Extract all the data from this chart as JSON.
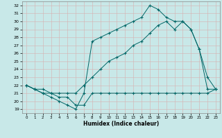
{
  "xlabel": "Humidex (Indice chaleur)",
  "bg_color": "#c8e8e8",
  "line_color": "#006666",
  "xlim": [
    -0.5,
    23.5
  ],
  "ylim": [
    18.5,
    32.5
  ],
  "yticks": [
    19,
    20,
    21,
    22,
    23,
    24,
    25,
    26,
    27,
    28,
    29,
    30,
    31,
    32
  ],
  "xticks": [
    0,
    1,
    2,
    3,
    4,
    5,
    6,
    7,
    8,
    9,
    10,
    11,
    12,
    13,
    14,
    15,
    16,
    17,
    18,
    19,
    20,
    21,
    22,
    23
  ],
  "line_max": {
    "x": [
      0,
      1,
      2,
      3,
      4,
      5,
      6,
      7,
      8,
      9,
      10,
      11,
      12,
      13,
      14,
      15,
      16,
      17,
      18,
      19,
      20,
      21,
      22,
      23
    ],
    "y": [
      22,
      21.5,
      21,
      20.5,
      20,
      19.5,
      19,
      21,
      27.5,
      28,
      28.5,
      29,
      29.5,
      30,
      30.5,
      32,
      31.5,
      30.5,
      30,
      30,
      29,
      26.5,
      23,
      21.5
    ]
  },
  "line_min": {
    "x": [
      0,
      1,
      2,
      3,
      4,
      5,
      6,
      7,
      8,
      9,
      10,
      11,
      12,
      13,
      14,
      15,
      16,
      17,
      18,
      19,
      20,
      21,
      22,
      23
    ],
    "y": [
      22,
      21.5,
      21,
      21,
      20.5,
      20.5,
      19.5,
      19.5,
      21,
      21,
      21,
      21,
      21,
      21,
      21,
      21,
      21,
      21,
      21,
      21,
      21,
      21,
      21,
      21.5
    ]
  },
  "line_mean": {
    "x": [
      0,
      1,
      2,
      3,
      4,
      5,
      6,
      7,
      8,
      9,
      10,
      11,
      12,
      13,
      14,
      15,
      16,
      17,
      18,
      19,
      20,
      21,
      22,
      23
    ],
    "y": [
      22,
      21.5,
      21.5,
      21,
      21,
      21,
      21,
      22,
      23,
      24,
      25,
      25.5,
      26,
      27,
      27.5,
      28.5,
      29.5,
      30,
      29,
      30,
      29,
      26.5,
      21.5,
      21.5
    ]
  },
  "grid_color": "#b0d0d0",
  "spine_color": "#888888"
}
